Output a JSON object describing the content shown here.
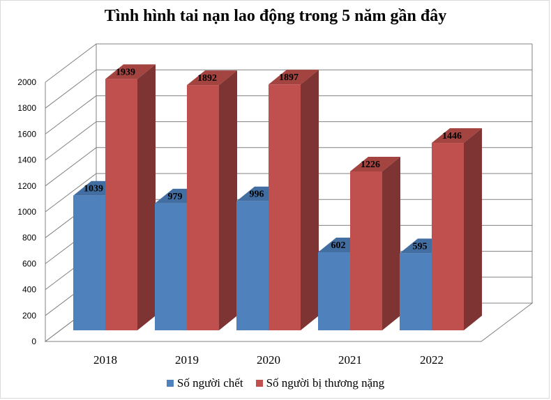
{
  "chart_data": {
    "type": "bar",
    "title": "Tình hình tai nạn lao động trong 5 năm gần đây",
    "xlabel": "",
    "ylabel": "",
    "categories": [
      "2018",
      "2019",
      "2020",
      "2021",
      "2022"
    ],
    "series": [
      {
        "name": "Số người chết",
        "values": [
          1039,
          979,
          996,
          602,
          595
        ],
        "color": "#4f81bd"
      },
      {
        "name": "Số người bị thương nặng",
        "values": [
          1939,
          1892,
          1897,
          1226,
          1446
        ],
        "color": "#c0504d"
      }
    ],
    "yticks": [
      "0",
      "200",
      "400",
      "600",
      "800",
      "1000",
      "1200",
      "1400",
      "1600",
      "1800",
      "2000"
    ],
    "ylim": [
      0,
      2000
    ],
    "grid": true,
    "legend": "bottom",
    "style": "3d-clustered-column"
  }
}
